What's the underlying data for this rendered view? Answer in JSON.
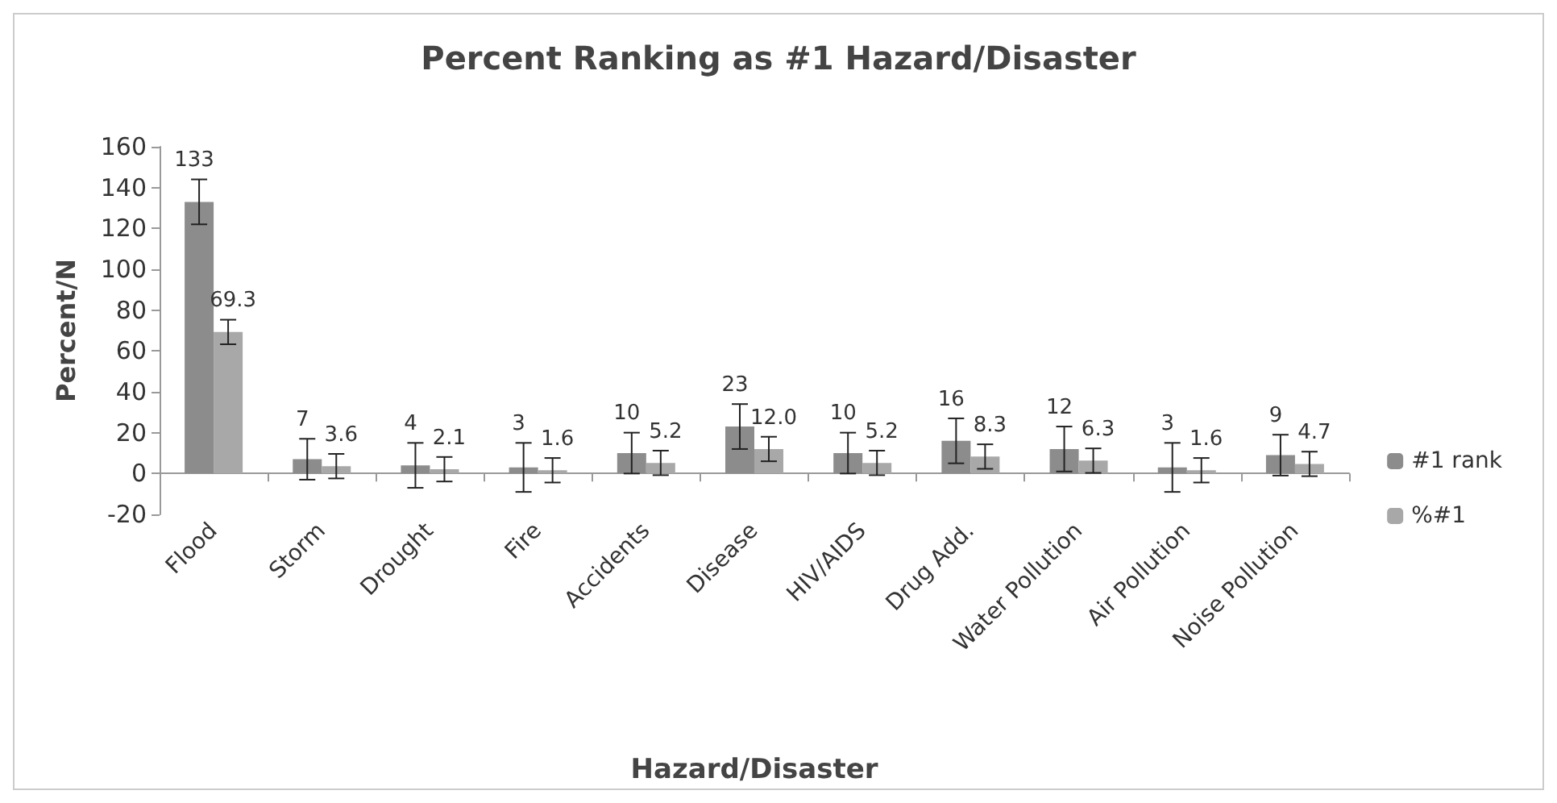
{
  "chart_data": {
    "type": "bar",
    "title": "Percent Ranking as #1 Hazard/Disaster",
    "xlabel": "Hazard/Disaster",
    "ylabel": "Percent/N",
    "categories": [
      "Flood",
      "Storm",
      "Drought",
      "Fire",
      "Accidents",
      "Disease",
      "HIV/AIDS",
      "Drug Add.",
      "Water Pollution",
      "Air Pollution",
      "Noise Pollution"
    ],
    "series": [
      {
        "name": "#1 rank",
        "color": "#8c8c8c",
        "values": [
          133,
          7,
          4,
          3,
          10,
          23,
          10,
          16,
          12,
          3,
          9
        ],
        "errors": [
          11,
          10,
          11,
          12,
          10,
          11,
          10,
          11,
          11,
          12,
          10
        ]
      },
      {
        "name": "%#1",
        "color": "#a8a8a8",
        "values": [
          69.3,
          3.6,
          2.1,
          1.6,
          5.2,
          12.0,
          5.2,
          8.3,
          6.3,
          1.6,
          4.7
        ],
        "value_labels": [
          "69.3",
          "3.6",
          "2.1",
          "1.6",
          "5.2",
          "12.0",
          "5.2",
          "8.3",
          "6.3",
          "1.6",
          "4.7"
        ],
        "errors": [
          6,
          6,
          6,
          6,
          6,
          6,
          6,
          6,
          6,
          6,
          6
        ]
      }
    ],
    "data_labels": true,
    "ylim": [
      -20,
      160
    ],
    "yticks": [
      -20,
      0,
      20,
      40,
      60,
      80,
      100,
      120,
      140,
      160
    ],
    "grid": false,
    "legend": "right"
  }
}
